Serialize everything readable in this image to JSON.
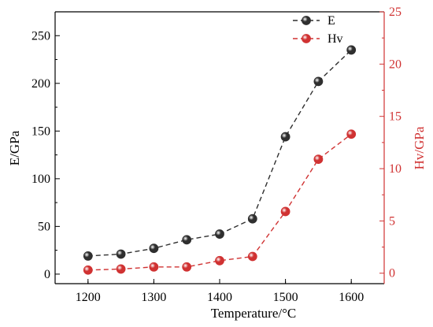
{
  "chart_data": {
    "type": "line",
    "x": [
      1200,
      1250,
      1300,
      1350,
      1400,
      1450,
      1500,
      1550,
      1600
    ],
    "xlabel": "Temperature/°C",
    "xlim": [
      1150,
      1650
    ],
    "xticks": [
      "1200",
      "1300",
      "1400",
      "1500",
      "1600"
    ],
    "series": [
      {
        "name": "E",
        "axis": "left",
        "values": [
          19,
          21,
          27,
          36,
          42,
          58,
          144,
          202,
          235
        ],
        "color": "#2f2f2f"
      },
      {
        "name": "Hv",
        "axis": "right",
        "values": [
          0.3,
          0.4,
          0.6,
          0.6,
          1.2,
          1.6,
          5.9,
          10.9,
          13.3
        ],
        "color": "#d03232"
      }
    ],
    "ylabel": "E/GPa",
    "ylim": [
      -10,
      275
    ],
    "yticks": [
      "0",
      "50",
      "100",
      "150",
      "200",
      "250"
    ],
    "y2label": "Hv/GPa",
    "y2lim": [
      -1,
      25
    ],
    "y2ticks": [
      "0",
      "5",
      "10",
      "15",
      "20",
      "25"
    ],
    "legend_position": "top-right",
    "grid": false,
    "line_style": "dashed"
  }
}
